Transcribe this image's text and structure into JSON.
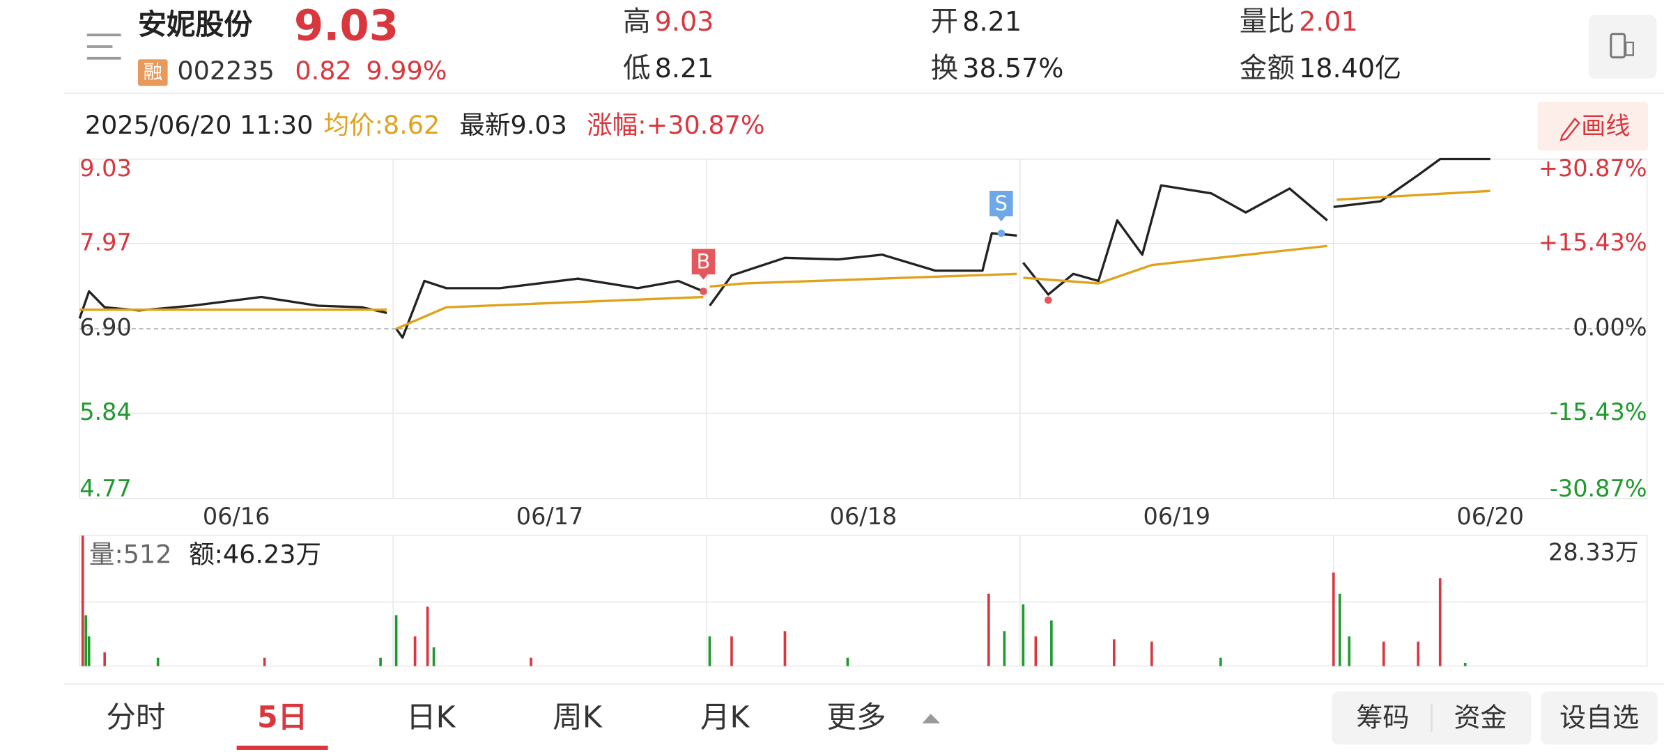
{
  "header": {
    "name": "安妮股份",
    "price": "9.03",
    "badge": "融",
    "code": "002235",
    "change": "0.82",
    "change_pct": "9.99%",
    "stats": [
      {
        "label": "高",
        "value": "9.03"
      },
      {
        "label": "低",
        "value": "8.21"
      },
      {
        "label": "开",
        "value": "8.21"
      },
      {
        "label": "换",
        "value": "38.57%"
      },
      {
        "label": "量比",
        "value": "2.01"
      },
      {
        "label": "金额",
        "value": "18.40亿"
      }
    ]
  },
  "info_bar": {
    "time": "2025/06/20 11:30",
    "avg": "均价:8.62",
    "latest": "最新9.03",
    "change": "涨幅:+30.87%",
    "draw_button": "画线"
  },
  "chart": {
    "type": "line",
    "xlim": [
      0,
      5
    ],
    "xticks": [
      {
        "value": 0.5,
        "label": "06/16"
      },
      {
        "value": 1.5,
        "label": "06/17"
      },
      {
        "value": 2.5,
        "label": "06/18"
      },
      {
        "value": 3.5,
        "label": "06/19"
      },
      {
        "value": 4.5,
        "label": "06/20"
      }
    ],
    "day_bounds": [
      1,
      2,
      3,
      4
    ],
    "ylim": [
      4.77,
      9.03
    ],
    "yticks": [
      9.03,
      7.97,
      {
        "value": 6.9,
        "label": "6.90"
      },
      5.84,
      4.77
    ],
    "y2ticks": [
      {
        "value": 30.87,
        "label": "+30.87%"
      },
      {
        "value": 15.43,
        "label": "+15.43%"
      },
      {
        "value": 0,
        "label": "0.00%"
      },
      {
        "value": -15.43,
        "label": "-15.43%"
      },
      {
        "value": -30.87,
        "label": "-30.87%"
      }
    ],
    "up_color": "#d9363e",
    "down_color": "#1f9a2e",
    "series": [
      {
        "color": "#222222",
        "x": [
          0,
          0.03,
          0.08,
          0.19,
          0.36,
          0.58,
          0.76,
          0.9,
          0.98,
          1.0,
          1.01,
          1.03,
          1.1,
          1.17,
          1.34,
          1.59,
          1.78,
          1.91,
          1.99,
          2.0,
          2.01,
          2.08,
          2.25,
          2.42,
          2.56,
          2.73,
          2.88,
          2.91,
          2.99,
          3.0,
          3.01,
          3.09,
          3.17,
          3.25,
          3.31,
          3.39,
          3.45,
          3.61,
          3.72,
          3.86,
          3.98,
          3.99,
          4.0,
          4.15,
          4.27,
          4.34,
          4.5
        ],
        "values": [
          7.03,
          7.37,
          7.17,
          7.13,
          7.19,
          7.3,
          7.19,
          7.17,
          7.1,
          null,
          6.9,
          6.79,
          7.5,
          7.41,
          7.41,
          7.53,
          7.41,
          7.5,
          7.37,
          null,
          7.19,
          7.57,
          7.79,
          7.77,
          7.83,
          7.63,
          7.63,
          8.1,
          8.07,
          null,
          7.73,
          7.33,
          7.59,
          7.5,
          8.26,
          7.83,
          8.7,
          8.6,
          8.36,
          8.66,
          8.26,
          null,
          8.43,
          8.5,
          8.83,
          9.03,
          9.03
        ]
      },
      {
        "color": "#e0a21c",
        "x": [
          0,
          0.98,
          1.0,
          1.01,
          1.17,
          1.99,
          2.0,
          2.01,
          2.12,
          2.99,
          3.0,
          3.01,
          3.25,
          3.42,
          3.98,
          3.99,
          4.01,
          4.5
        ],
        "values": [
          7.14,
          7.14,
          null,
          6.9,
          7.17,
          7.3,
          null,
          7.43,
          7.47,
          7.59,
          null,
          7.54,
          7.47,
          7.7,
          7.94,
          null,
          8.52,
          8.63
        ]
      }
    ],
    "markers": [
      {
        "label": "B",
        "x": 1.99,
        "value": 7.37,
        "color": "#e5575c"
      },
      {
        "label": "S",
        "x": 2.94,
        "value": 8.1,
        "color": "#6ea8e8"
      }
    ],
    "dots": [
      {
        "x": 3.09,
        "value": 7.26,
        "color": "#e5575c"
      }
    ],
    "volume": {
      "vol_label": "量:512",
      "amount_label": "额:46.23万",
      "ylim": [
        0,
        28.33
      ],
      "yticks": [
        {
          "value": 28.33,
          "label": "28.33万"
        }
      ],
      "x": [
        0.01,
        0.02,
        0.03,
        0.08,
        0.25,
        0.59,
        0.96,
        1.01,
        1.07,
        1.11,
        1.13,
        1.44,
        2.01,
        2.08,
        2.25,
        2.45,
        2.9,
        2.95,
        3.01,
        3.05,
        3.1,
        3.3,
        3.42,
        3.64,
        4.0,
        4.02,
        4.05,
        4.16,
        4.27,
        4.34,
        4.42
      ],
      "values": [
        28.33,
        11.06,
        6.45,
        3.0,
        1.8,
        1.8,
        1.8,
        11.06,
        6.45,
        12.9,
        4.1,
        1.8,
        6.45,
        6.45,
        7.6,
        1.8,
        15.7,
        7.6,
        13.4,
        6.45,
        9.9,
        5.8,
        5.3,
        1.8,
        20.3,
        15.7,
        6.45,
        5.3,
        5.3,
        19.1,
        0.7
      ],
      "colors": [
        "#d9363e",
        "#1f9a2e",
        "#1f9a2e",
        "#d9363e",
        "#1f9a2e",
        "#d9363e",
        "#1f9a2e",
        "#1f9a2e",
        "#d9363e",
        "#d9363e",
        "#1f9a2e",
        "#d9363e",
        "#1f9a2e",
        "#d9363e",
        "#d9363e",
        "#1f9a2e",
        "#d9363e",
        "#1f9a2e",
        "#1f9a2e",
        "#d9363e",
        "#1f9a2e",
        "#d9363e",
        "#d9363e",
        "#1f9a2e",
        "#d9363e",
        "#1f9a2e",
        "#1f9a2e",
        "#d9363e",
        "#d9363e",
        "#d9363e",
        "#1f9a2e"
      ]
    }
  },
  "tabs": [
    "分时",
    "5日",
    "日K",
    "周K",
    "月K",
    "更多"
  ],
  "active_tab": 1,
  "buttons": [
    "筹码",
    "资金",
    "设自选"
  ]
}
